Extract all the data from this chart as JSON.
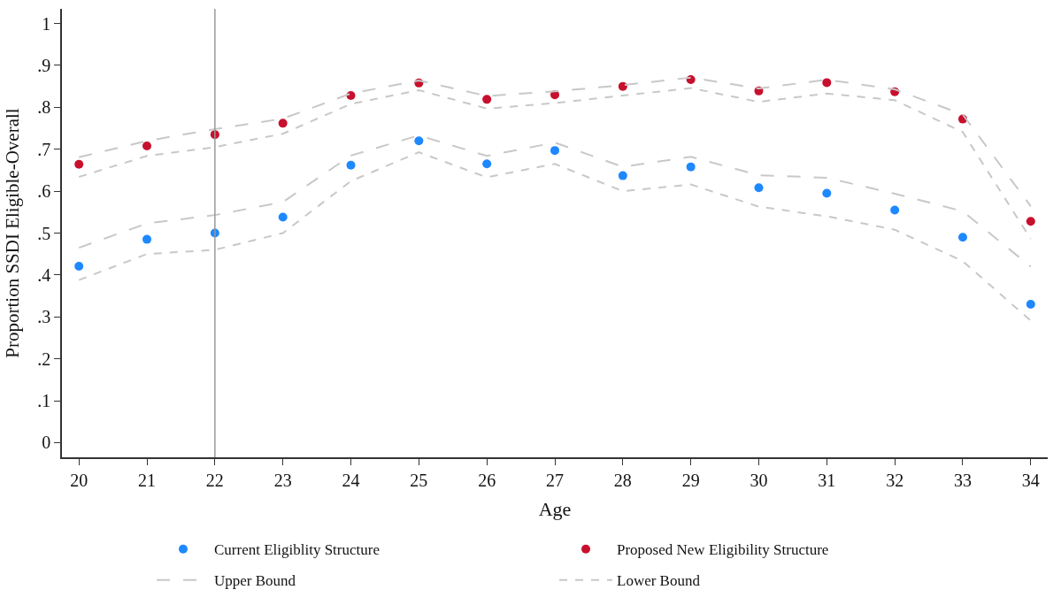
{
  "chart_data": {
    "type": "scatter",
    "xlabel": "Age",
    "ylabel": "Proportion SSDI Eligible-Overall",
    "x": [
      20,
      21,
      22,
      23,
      24,
      25,
      26,
      27,
      28,
      29,
      30,
      31,
      32,
      33,
      34
    ],
    "series": [
      {
        "name": "Current Eligiblity Structure",
        "color": "#1e88ff",
        "marker": "circle",
        "values": [
          0.421,
          0.485,
          0.5,
          0.538,
          0.662,
          0.72,
          0.665,
          0.697,
          0.637,
          0.658,
          0.608,
          0.595,
          0.555,
          0.49,
          0.33
        ]
      },
      {
        "name": "Proposed New Eligibility Structure",
        "color": "#c8102e",
        "marker": "circle",
        "values": [
          0.664,
          0.708,
          0.735,
          0.762,
          0.828,
          0.858,
          0.819,
          0.83,
          0.85,
          0.866,
          0.839,
          0.859,
          0.837,
          0.772,
          0.528
        ]
      },
      {
        "name": "Upper Bound",
        "type": "line",
        "color": "#c8c8c8",
        "line_style": "dashed",
        "marker": "none",
        "values": [
          0.465,
          0.523,
          0.543,
          0.574,
          0.685,
          0.733,
          0.684,
          0.716,
          0.658,
          0.682,
          0.638,
          0.632,
          0.594,
          0.552,
          0.42
        ]
      },
      {
        "name": "Lower Bound",
        "type": "line",
        "color": "#c8c8c8",
        "line_style": "dotted",
        "marker": "none",
        "values": [
          0.388,
          0.45,
          0.46,
          0.5,
          0.624,
          0.693,
          0.633,
          0.665,
          0.6,
          0.616,
          0.563,
          0.54,
          0.508,
          0.433,
          0.291
        ]
      },
      {
        "type": "line",
        "color": "#c8c8c8",
        "line_style": "dashed",
        "marker": "none",
        "values": [
          0.681,
          0.72,
          0.748,
          0.773,
          0.833,
          0.864,
          0.827,
          0.838,
          0.853,
          0.871,
          0.845,
          0.866,
          0.843,
          0.783,
          0.564
        ]
      },
      {
        "type": "line",
        "color": "#c8c8c8",
        "line_style": "dotted",
        "marker": "none",
        "values": [
          0.634,
          0.684,
          0.705,
          0.737,
          0.808,
          0.841,
          0.797,
          0.81,
          0.828,
          0.846,
          0.813,
          0.833,
          0.817,
          0.741,
          0.486
        ]
      }
    ],
    "xlim": [
      19.75,
      34.25
    ],
    "xticks": [
      20,
      21,
      22,
      23,
      24,
      25,
      26,
      27,
      28,
      29,
      30,
      31,
      32,
      33,
      34
    ],
    "ylim": [
      -0.035,
      1.035
    ],
    "yticks": [
      0,
      {
        "value": 0.1,
        "label": ".1"
      },
      {
        "value": 0.2,
        "label": ".2"
      },
      {
        "value": 0.3,
        "label": ".3"
      },
      {
        "value": 0.4,
        "label": ".4"
      },
      {
        "value": 0.5,
        "label": ".5"
      },
      {
        "value": 0.6,
        "label": ".6"
      },
      {
        "value": 0.7,
        "label": ".7"
      },
      {
        "value": 0.8,
        "label": ".8"
      },
      {
        "value": 0.9,
        "label": ".9"
      },
      1
    ],
    "ref_lines": [
      {
        "axis": "x",
        "value": 22,
        "color": "#999999",
        "line_style": "solid"
      }
    ],
    "grid": false,
    "legend": "bottom"
  }
}
